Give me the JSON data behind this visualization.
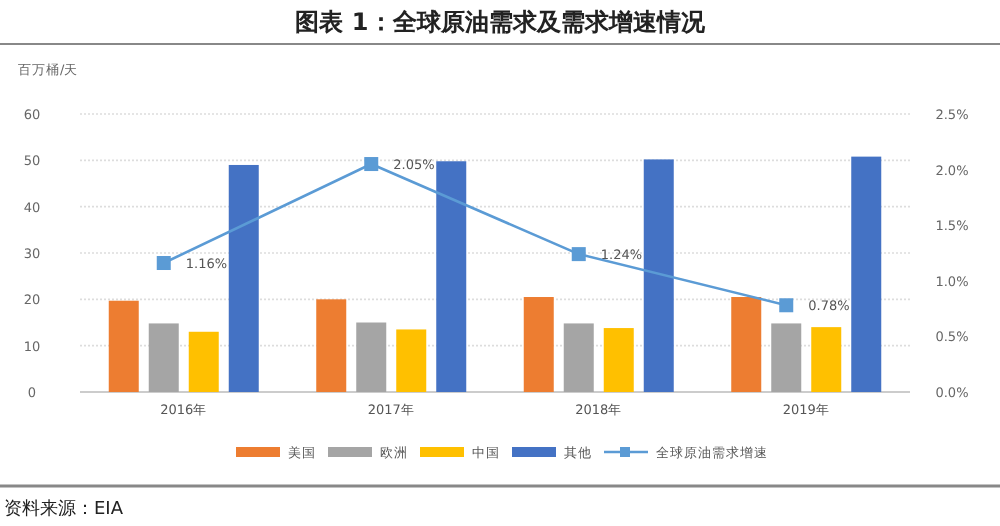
{
  "chart_data": {
    "type": "bar",
    "title": "图表 1：全球原油需求及需求增速情况",
    "ylabel": "百万桶/天",
    "categories": [
      "2016年",
      "2017年",
      "2018年",
      "2019年"
    ],
    "series": [
      {
        "name": "美国",
        "color": "#ed7d31",
        "values": [
          19.7,
          20.0,
          20.5,
          20.5
        ]
      },
      {
        "name": "欧洲",
        "color": "#a5a5a5",
        "values": [
          14.8,
          15.0,
          14.8,
          14.8
        ]
      },
      {
        "name": "中国",
        "color": "#ffc000",
        "values": [
          13.0,
          13.5,
          13.8,
          14.0
        ]
      },
      {
        "name": "其他",
        "color": "#4472c4",
        "values": [
          49.0,
          49.8,
          50.2,
          50.8
        ]
      },
      {
        "name": "全球原油需求增速",
        "type": "line",
        "axis": "y2",
        "color": "#5b9bd5",
        "marker": "square",
        "values": [
          1.16,
          2.05,
          1.24,
          0.78
        ],
        "value_labels": [
          "1.16%",
          "2.05%",
          "1.24%",
          "0.78%"
        ]
      }
    ],
    "ylim": [
      0,
      60
    ],
    "yticks": [
      0,
      10,
      20,
      30,
      40,
      50,
      60
    ],
    "y2lim": [
      0,
      2.5
    ],
    "y2ticks": [
      {
        "value": 0,
        "label": "0.0%"
      },
      {
        "value": 0.5,
        "label": "0.5%"
      },
      {
        "value": 1,
        "label": "1.0%"
      },
      {
        "value": 1.5,
        "label": "1.5%"
      },
      {
        "value": 2,
        "label": "2.0%"
      },
      {
        "value": 2.5,
        "label": "2.5%"
      }
    ],
    "grid": "y",
    "legend": "bottom",
    "annotations": [
      "资料来源：EIA"
    ]
  }
}
